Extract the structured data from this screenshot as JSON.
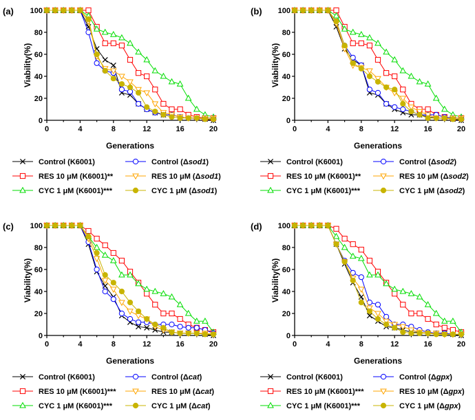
{
  "figure": {
    "panels": [
      {
        "letter": "(a)"
      },
      {
        "letter": "(b)"
      },
      {
        "letter": "(c)"
      },
      {
        "letter": "(d)"
      }
    ]
  },
  "chart_data": [
    {
      "type": "line",
      "panel": "(a)",
      "xlabel": "Generations",
      "ylabel": "Viability(%)",
      "xlim": [
        0,
        20
      ],
      "ylim": [
        0,
        100
      ],
      "xticks": [
        0,
        4,
        8,
        12,
        16,
        20
      ],
      "yticks": [
        0,
        20,
        40,
        60,
        80,
        100
      ],
      "x": [
        0,
        1,
        2,
        3,
        4,
        5,
        6,
        7,
        8,
        9,
        10,
        11,
        12,
        13,
        14,
        15,
        16,
        17,
        18,
        19,
        20
      ],
      "series": [
        {
          "name": "Control (K6001)",
          "color": "#000000",
          "marker": "x",
          "values": [
            100,
            100,
            100,
            100,
            100,
            85,
            65,
            55,
            50,
            25,
            23,
            15,
            10,
            7,
            5,
            5,
            3,
            2,
            2,
            1,
            0
          ]
        },
        {
          "name": "RES 10 μM (K6001)**",
          "color": "#ff0000",
          "marker": "square",
          "values": [
            100,
            100,
            100,
            100,
            100,
            100,
            85,
            70,
            70,
            68,
            55,
            43,
            40,
            28,
            15,
            10,
            10,
            5,
            3,
            2,
            2
          ]
        },
        {
          "name": "CYC 1 μM (K6001)***",
          "color": "#00dd00",
          "marker": "triangle-up",
          "values": [
            100,
            100,
            100,
            100,
            100,
            95,
            83,
            80,
            78,
            75,
            70,
            62,
            55,
            45,
            40,
            35,
            33,
            20,
            10,
            5,
            3
          ]
        },
        {
          "name": "Control (Δsod1)",
          "color": "#0000ff",
          "marker": "circle",
          "values": [
            100,
            100,
            100,
            100,
            100,
            80,
            52,
            45,
            43,
            28,
            26,
            15,
            10,
            7,
            5,
            5,
            3,
            2,
            2,
            2,
            2
          ]
        },
        {
          "name": "RES 10 μM (Δsod1)",
          "color": "#ffa500",
          "marker": "triangle-down",
          "values": [
            100,
            100,
            100,
            100,
            100,
            90,
            58,
            47,
            45,
            40,
            35,
            28,
            25,
            15,
            7,
            5,
            3,
            2,
            2,
            2,
            2
          ]
        },
        {
          "name": "CYC 1 μM (Δsod1)",
          "color": "#c8b400",
          "marker": "circle-filled",
          "values": [
            100,
            100,
            100,
            100,
            100,
            92,
            60,
            45,
            38,
            33,
            30,
            25,
            12,
            8,
            5,
            3,
            2,
            2,
            2,
            1,
            1
          ]
        }
      ]
    },
    {
      "type": "line",
      "panel": "(b)",
      "xlabel": "Generations",
      "ylabel": "Viability(%)",
      "xlim": [
        0,
        20
      ],
      "ylim": [
        0,
        100
      ],
      "xticks": [
        0,
        4,
        8,
        12,
        16,
        20
      ],
      "yticks": [
        0,
        20,
        40,
        60,
        80,
        100
      ],
      "x": [
        0,
        1,
        2,
        3,
        4,
        5,
        6,
        7,
        8,
        9,
        10,
        11,
        12,
        13,
        14,
        15,
        16,
        17,
        18,
        19,
        20
      ],
      "series": [
        {
          "name": "Control (K6001)",
          "color": "#000000",
          "marker": "x",
          "values": [
            100,
            100,
            100,
            100,
            100,
            85,
            65,
            55,
            50,
            25,
            23,
            15,
            10,
            7,
            5,
            5,
            3,
            2,
            2,
            1,
            0
          ]
        },
        {
          "name": "RES 10 μM (K6001)**",
          "color": "#ff0000",
          "marker": "square",
          "values": [
            100,
            100,
            100,
            100,
            100,
            100,
            85,
            70,
            70,
            68,
            55,
            43,
            40,
            28,
            15,
            10,
            10,
            5,
            3,
            2,
            2
          ]
        },
        {
          "name": "CYC 1 μM (K6001)***",
          "color": "#00dd00",
          "marker": "triangle-up",
          "values": [
            100,
            100,
            100,
            100,
            100,
            95,
            83,
            80,
            78,
            75,
            70,
            62,
            55,
            45,
            40,
            35,
            33,
            20,
            10,
            5,
            3
          ]
        },
        {
          "name": "Control (Δsod2)",
          "color": "#0000ff",
          "marker": "circle",
          "values": [
            100,
            100,
            100,
            100,
            100,
            90,
            68,
            57,
            50,
            28,
            25,
            15,
            12,
            10,
            8,
            5,
            5,
            5,
            3,
            2,
            2
          ]
        },
        {
          "name": "RES 10 μM (Δsod2)",
          "color": "#ffa500",
          "marker": "triangle-down",
          "values": [
            100,
            100,
            100,
            100,
            100,
            88,
            65,
            50,
            48,
            45,
            38,
            30,
            25,
            20,
            12,
            8,
            5,
            2,
            2,
            2,
            2
          ]
        },
        {
          "name": "CYC 1 μM (Δsod2)",
          "color": "#c8b400",
          "marker": "circle-filled",
          "values": [
            100,
            100,
            100,
            100,
            100,
            90,
            68,
            52,
            47,
            40,
            35,
            30,
            28,
            15,
            8,
            5,
            2,
            2,
            2,
            1,
            1
          ]
        }
      ]
    },
    {
      "type": "line",
      "panel": "(c)",
      "xlabel": "Generations",
      "ylabel": "Viability(%)",
      "xlim": [
        0,
        20
      ],
      "ylim": [
        0,
        100
      ],
      "xticks": [
        0,
        4,
        8,
        12,
        16,
        20
      ],
      "yticks": [
        0,
        20,
        40,
        60,
        80,
        100
      ],
      "x": [
        0,
        1,
        2,
        3,
        4,
        5,
        6,
        7,
        8,
        9,
        10,
        11,
        12,
        13,
        14,
        15,
        16,
        17,
        18,
        19,
        20
      ],
      "series": [
        {
          "name": "Control (K6001)",
          "color": "#000000",
          "marker": "x",
          "values": [
            100,
            100,
            100,
            100,
            100,
            83,
            58,
            45,
            35,
            18,
            12,
            8,
            7,
            5,
            3,
            3,
            2,
            2,
            2,
            1,
            0
          ]
        },
        {
          "name": "RES 10 μM (K6001)***",
          "color": "#ff0000",
          "marker": "square",
          "values": [
            100,
            100,
            100,
            100,
            100,
            95,
            88,
            82,
            75,
            68,
            58,
            48,
            38,
            28,
            20,
            20,
            15,
            10,
            7,
            5,
            3
          ]
        },
        {
          "name": "CYC 1 μM (K6001)***",
          "color": "#00dd00",
          "marker": "triangle-up",
          "values": [
            100,
            100,
            100,
            100,
            100,
            90,
            80,
            73,
            68,
            55,
            55,
            47,
            42,
            40,
            38,
            35,
            28,
            20,
            13,
            13,
            3
          ]
        },
        {
          "name": "Control (Δcat)",
          "color": "#0000ff",
          "marker": "circle",
          "values": [
            100,
            100,
            100,
            100,
            100,
            85,
            60,
            40,
            33,
            20,
            15,
            12,
            12,
            10,
            10,
            10,
            8,
            7,
            7,
            5,
            2
          ]
        },
        {
          "name": "RES 10 μM (Δcat)",
          "color": "#ffa500",
          "marker": "triangle-down",
          "values": [
            100,
            100,
            100,
            100,
            100,
            88,
            70,
            50,
            42,
            30,
            22,
            18,
            15,
            8,
            5,
            3,
            2,
            2,
            2,
            2,
            1
          ]
        },
        {
          "name": "CYC 1 μM (Δcat)",
          "color": "#c8b400",
          "marker": "circle-filled",
          "values": [
            100,
            100,
            100,
            100,
            100,
            90,
            75,
            55,
            48,
            40,
            30,
            22,
            15,
            10,
            7,
            3,
            2,
            2,
            2,
            1,
            1
          ]
        }
      ]
    },
    {
      "type": "line",
      "panel": "(d)",
      "xlabel": "Generations",
      "ylabel": "Viability(%)",
      "xlim": [
        0,
        20
      ],
      "ylim": [
        0,
        100
      ],
      "xticks": [
        0,
        4,
        8,
        12,
        16,
        20
      ],
      "yticks": [
        0,
        20,
        40,
        60,
        80,
        100
      ],
      "x": [
        0,
        1,
        2,
        3,
        4,
        5,
        6,
        7,
        8,
        9,
        10,
        11,
        12,
        13,
        14,
        15,
        16,
        17,
        18,
        19,
        20
      ],
      "series": [
        {
          "name": "Control (K6001)",
          "color": "#000000",
          "marker": "x",
          "values": [
            100,
            100,
            100,
            100,
            100,
            83,
            65,
            48,
            35,
            18,
            13,
            8,
            7,
            5,
            3,
            3,
            2,
            2,
            2,
            1,
            0
          ]
        },
        {
          "name": "RES 10 μM (K6001)***",
          "color": "#ff0000",
          "marker": "square",
          "values": [
            100,
            100,
            100,
            100,
            100,
            97,
            88,
            83,
            78,
            68,
            58,
            48,
            38,
            28,
            20,
            20,
            15,
            10,
            7,
            5,
            3
          ]
        },
        {
          "name": "CYC 1 μM (K6001)***",
          "color": "#00dd00",
          "marker": "triangle-up",
          "values": [
            100,
            100,
            100,
            100,
            100,
            90,
            80,
            72,
            70,
            55,
            55,
            47,
            42,
            40,
            38,
            35,
            28,
            20,
            13,
            13,
            3
          ]
        },
        {
          "name": "Control (Δgpx)",
          "color": "#0000ff",
          "marker": "circle",
          "values": [
            100,
            100,
            100,
            100,
            100,
            83,
            68,
            57,
            53,
            30,
            28,
            17,
            10,
            10,
            8,
            5,
            3,
            2,
            2,
            1,
            1
          ]
        },
        {
          "name": "RES 10 μM (Δgpx)",
          "color": "#ffa500",
          "marker": "triangle-down",
          "values": [
            100,
            100,
            100,
            100,
            100,
            83,
            67,
            52,
            42,
            25,
            20,
            13,
            10,
            8,
            5,
            3,
            2,
            2,
            1,
            1,
            1
          ]
        },
        {
          "name": "CYC 1 μM (Δgpx)",
          "color": "#c8b400",
          "marker": "circle-filled",
          "values": [
            100,
            100,
            100,
            100,
            100,
            83,
            67,
            50,
            30,
            22,
            15,
            10,
            7,
            3,
            2,
            2,
            2,
            1,
            1,
            1,
            1
          ]
        }
      ]
    }
  ]
}
